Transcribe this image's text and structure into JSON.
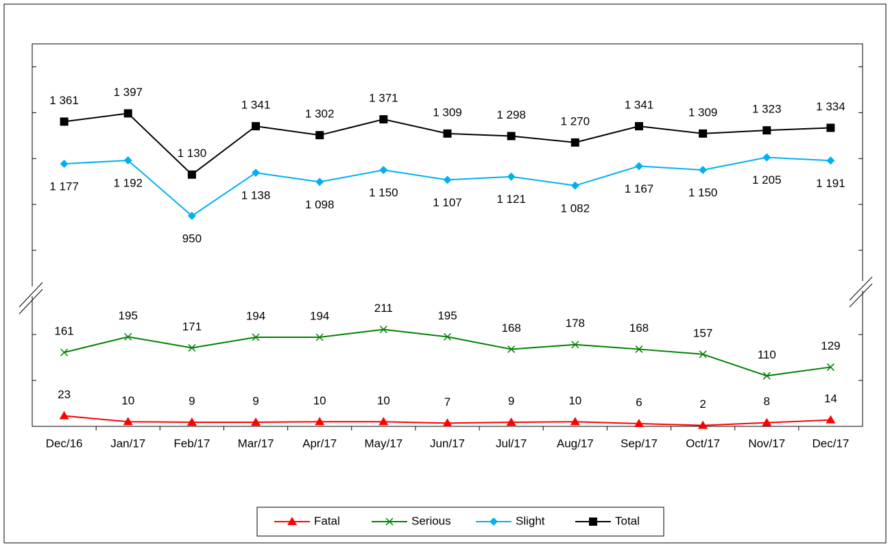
{
  "chart_data": {
    "type": "line",
    "categories": [
      "Dec/16",
      "Jan/17",
      "Feb/17",
      "Mar/17",
      "Apr/17",
      "May/17",
      "Jun/17",
      "Jul/17",
      "Aug/17",
      "Sep/17",
      "Oct/17",
      "Nov/17",
      "Dec/17"
    ],
    "ylim": [
      0,
      300
    ],
    "yticks": [
      0,
      100,
      200
    ],
    "y2lim": [
      633,
      1700
    ],
    "y2ticks": [
      800,
      1000,
      1200,
      1400,
      1600
    ],
    "series": [
      {
        "name": "Fatal",
        "color": "#ff0000",
        "marker": "triangle",
        "label_position": "above",
        "values": [
          23,
          10,
          9,
          9,
          10,
          10,
          7,
          9,
          10,
          6,
          2,
          8,
          14
        ]
      },
      {
        "name": "Serious",
        "color": "#008000",
        "marker": "x",
        "label_position": "above",
        "values": [
          161,
          195,
          171,
          194,
          194,
          211,
          195,
          168,
          178,
          168,
          157,
          110,
          129
        ]
      },
      {
        "name": "Slight",
        "color": "#00b0f0",
        "marker": "diamond",
        "label_position": "below",
        "axis": "y2",
        "values": [
          1177,
          1192,
          950,
          1138,
          1098,
          1150,
          1107,
          1121,
          1082,
          1167,
          1150,
          1205,
          1191
        ],
        "value_labels": [
          "1 177",
          "1 192",
          "950",
          "1 138",
          "1 098",
          "1 150",
          "1 107",
          "1 121",
          "1 082",
          "1 167",
          "1 150",
          "1 205",
          "1 191"
        ]
      },
      {
        "name": "Total",
        "color": "#000000",
        "marker": "square",
        "label_position": "above",
        "axis": "y2",
        "values": [
          1361,
          1397,
          1130,
          1341,
          1302,
          1371,
          1309,
          1298,
          1270,
          1341,
          1309,
          1323,
          1334
        ],
        "value_labels": [
          "1 361",
          "1 397",
          "1 130",
          "1 341",
          "1 302",
          "1 371",
          "1 309",
          "1 298",
          "1 270",
          "1 341",
          "1 309",
          "1 323",
          "1 334"
        ]
      }
    ]
  }
}
